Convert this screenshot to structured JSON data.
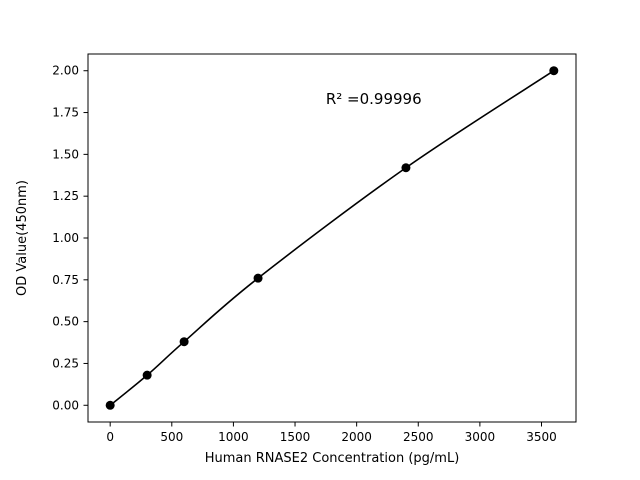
{
  "chart_data": {
    "type": "scatter",
    "title": "",
    "xlabel": "Human RNASE2 Concentration (pg/mL)",
    "ylabel": "OD Value(450nm)",
    "x": [
      0,
      300,
      600,
      1200,
      2400,
      3600
    ],
    "y": [
      0.0,
      0.18,
      0.38,
      0.76,
      1.42,
      2.0
    ],
    "x_ticks": [
      0,
      500,
      1000,
      1500,
      2000,
      2500,
      3000,
      3500
    ],
    "y_ticks": [
      "0.00",
      "0.25",
      "0.50",
      "0.75",
      "1.00",
      "1.25",
      "1.50",
      "1.75",
      "2.00"
    ],
    "xlim": [
      -180,
      3780
    ],
    "ylim": [
      -0.1,
      2.1
    ],
    "annotation": "R² =0.99996",
    "annotation_pos": {
      "x": 1750,
      "y": 1.8
    },
    "line_color": "#000000",
    "marker_color": "#000000",
    "axis_color": "#000000",
    "background": "#ffffff",
    "grid": false,
    "legend": "none",
    "marker_size": 4.5,
    "line_width": 1.6
  }
}
